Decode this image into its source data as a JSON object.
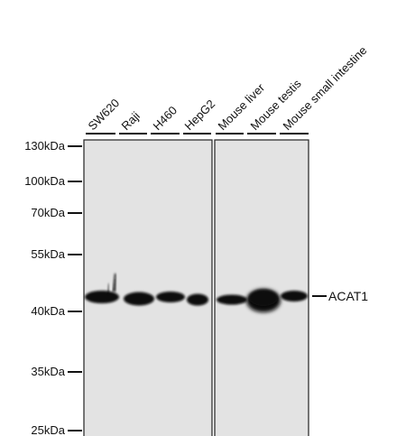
{
  "lanes": [
    {
      "label": "SW620"
    },
    {
      "label": "Raji"
    },
    {
      "label": "H460"
    },
    {
      "label": "HepG2"
    },
    {
      "label": "Mouse liver"
    },
    {
      "label": "Mouse testis"
    },
    {
      "label": "Mouse small intestine"
    }
  ],
  "markers": [
    {
      "label": "130kDa"
    },
    {
      "label": "100kDa"
    },
    {
      "label": "70kDa"
    },
    {
      "label": "55kDa"
    },
    {
      "label": "40kDa"
    },
    {
      "label": "35kDa"
    },
    {
      "label": "25kDa"
    }
  ],
  "band_label": "ACAT1",
  "colors": {
    "membrane": "#e3e3e3",
    "band": "#0a0a0a",
    "border": "#222222"
  }
}
